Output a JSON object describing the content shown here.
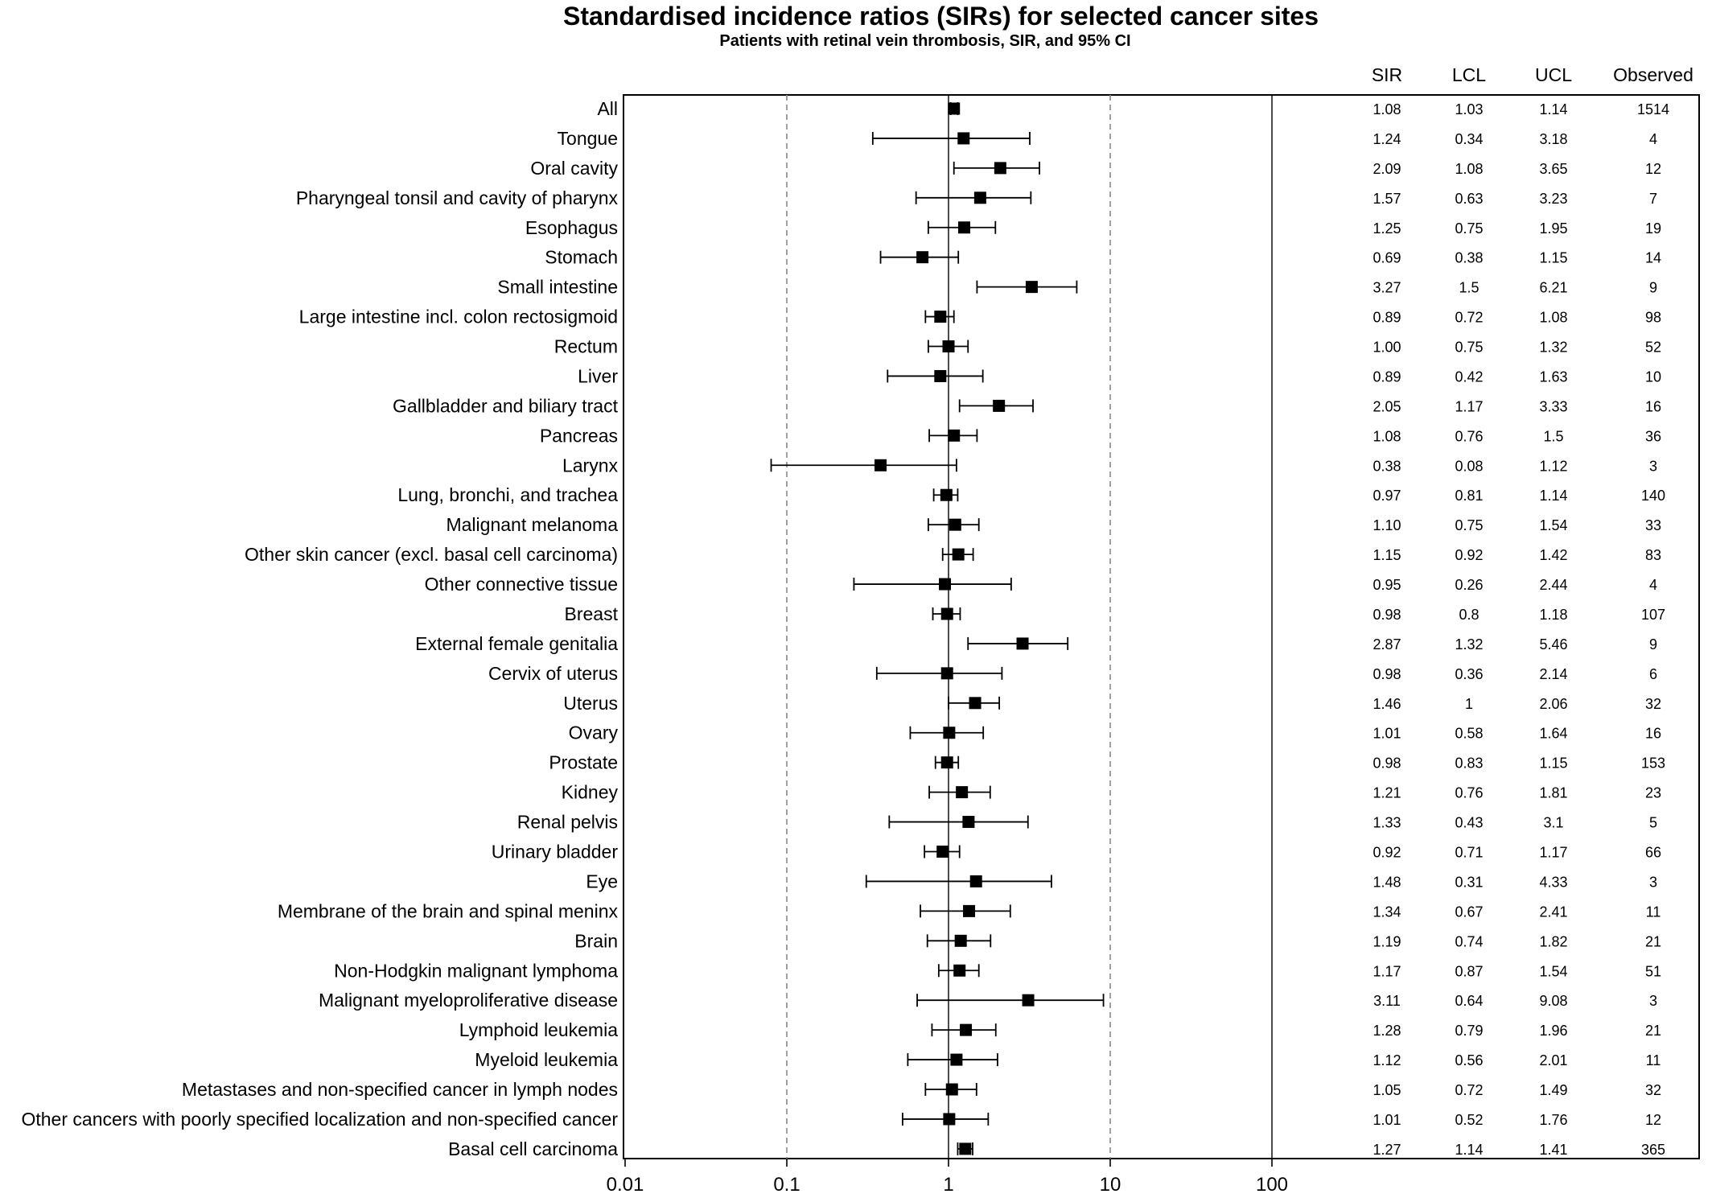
{
  "chart_data": {
    "type": "forest",
    "title": "Standardised incidence ratios (SIRs) for selected cancer sites",
    "subtitle": "Patients with retinal vein thrombosis, SIR, and 95% CI",
    "xscale": "log",
    "xlim": [
      0.01,
      100
    ],
    "xticks": [
      "0.01",
      "0.1",
      "1",
      "10",
      "100"
    ],
    "reference_line": 1,
    "dashed_lines": [
      0.1,
      10
    ],
    "columns": [
      "SIR",
      "LCL",
      "UCL",
      "Observed"
    ],
    "rows": [
      {
        "site": "All",
        "sir": "1.08",
        "lcl": "1.03",
        "ucl": "1.14",
        "observed": "1514"
      },
      {
        "site": "Tongue",
        "sir": "1.24",
        "lcl": "0.34",
        "ucl": "3.18",
        "observed": "4"
      },
      {
        "site": "Oral cavity",
        "sir": "2.09",
        "lcl": "1.08",
        "ucl": "3.65",
        "observed": "12"
      },
      {
        "site": "Pharyngeal tonsil and cavity of pharynx",
        "sir": "1.57",
        "lcl": "0.63",
        "ucl": "3.23",
        "observed": "7"
      },
      {
        "site": "Esophagus",
        "sir": "1.25",
        "lcl": "0.75",
        "ucl": "1.95",
        "observed": "19"
      },
      {
        "site": "Stomach",
        "sir": "0.69",
        "lcl": "0.38",
        "ucl": "1.15",
        "observed": "14"
      },
      {
        "site": "Small intestine",
        "sir": "3.27",
        "lcl": "1.5",
        "ucl": "6.21",
        "observed": "9"
      },
      {
        "site": "Large intestine incl. colon rectosigmoid",
        "sir": "0.89",
        "lcl": "0.72",
        "ucl": "1.08",
        "observed": "98"
      },
      {
        "site": "Rectum",
        "sir": "1.00",
        "lcl": "0.75",
        "ucl": "1.32",
        "observed": "52"
      },
      {
        "site": "Liver",
        "sir": "0.89",
        "lcl": "0.42",
        "ucl": "1.63",
        "observed": "10"
      },
      {
        "site": "Gallbladder and biliary tract",
        "sir": "2.05",
        "lcl": "1.17",
        "ucl": "3.33",
        "observed": "16"
      },
      {
        "site": "Pancreas",
        "sir": "1.08",
        "lcl": "0.76",
        "ucl": "1.5",
        "observed": "36"
      },
      {
        "site": "Larynx",
        "sir": "0.38",
        "lcl": "0.08",
        "ucl": "1.12",
        "observed": "3"
      },
      {
        "site": "Lung, bronchi, and trachea",
        "sir": "0.97",
        "lcl": "0.81",
        "ucl": "1.14",
        "observed": "140"
      },
      {
        "site": "Malignant melanoma",
        "sir": "1.10",
        "lcl": "0.75",
        "ucl": "1.54",
        "observed": "33"
      },
      {
        "site": "Other skin cancer (excl. basal cell carcinoma)",
        "sir": "1.15",
        "lcl": "0.92",
        "ucl": "1.42",
        "observed": "83"
      },
      {
        "site": "Other connective tissue",
        "sir": "0.95",
        "lcl": "0.26",
        "ucl": "2.44",
        "observed": "4"
      },
      {
        "site": "Breast",
        "sir": "0.98",
        "lcl": "0.8",
        "ucl": "1.18",
        "observed": "107"
      },
      {
        "site": "External female genitalia",
        "sir": "2.87",
        "lcl": "1.32",
        "ucl": "5.46",
        "observed": "9"
      },
      {
        "site": "Cervix of uterus",
        "sir": "0.98",
        "lcl": "0.36",
        "ucl": "2.14",
        "observed": "6"
      },
      {
        "site": "Uterus",
        "sir": "1.46",
        "lcl": "1",
        "ucl": "2.06",
        "observed": "32"
      },
      {
        "site": "Ovary",
        "sir": "1.01",
        "lcl": "0.58",
        "ucl": "1.64",
        "observed": "16"
      },
      {
        "site": "Prostate",
        "sir": "0.98",
        "lcl": "0.83",
        "ucl": "1.15",
        "observed": "153"
      },
      {
        "site": "Kidney",
        "sir": "1.21",
        "lcl": "0.76",
        "ucl": "1.81",
        "observed": "23"
      },
      {
        "site": "Renal pelvis",
        "sir": "1.33",
        "lcl": "0.43",
        "ucl": "3.1",
        "observed": "5"
      },
      {
        "site": "Urinary bladder",
        "sir": "0.92",
        "lcl": "0.71",
        "ucl": "1.17",
        "observed": "66"
      },
      {
        "site": "Eye",
        "sir": "1.48",
        "lcl": "0.31",
        "ucl": "4.33",
        "observed": "3"
      },
      {
        "site": "Membrane of the brain and spinal meninx",
        "sir": "1.34",
        "lcl": "0.67",
        "ucl": "2.41",
        "observed": "11"
      },
      {
        "site": "Brain",
        "sir": "1.19",
        "lcl": "0.74",
        "ucl": "1.82",
        "observed": "21"
      },
      {
        "site": "Non-Hodgkin malignant lymphoma",
        "sir": "1.17",
        "lcl": "0.87",
        "ucl": "1.54",
        "observed": "51"
      },
      {
        "site": "Malignant myeloproliferative disease",
        "sir": "3.11",
        "lcl": "0.64",
        "ucl": "9.08",
        "observed": "3"
      },
      {
        "site": "Lymphoid leukemia",
        "sir": "1.28",
        "lcl": "0.79",
        "ucl": "1.96",
        "observed": "21"
      },
      {
        "site": "Myeloid leukemia",
        "sir": "1.12",
        "lcl": "0.56",
        "ucl": "2.01",
        "observed": "11"
      },
      {
        "site": "Metastases and non-specified cancer in lymph nodes",
        "sir": "1.05",
        "lcl": "0.72",
        "ucl": "1.49",
        "observed": "32"
      },
      {
        "site": "Other cancers with poorly specified localization and non-specified cancer",
        "sir": "1.01",
        "lcl": "0.52",
        "ucl": "1.76",
        "observed": "12"
      },
      {
        "site": "Basal cell carcinoma",
        "sir": "1.27",
        "lcl": "1.14",
        "ucl": "1.41",
        "observed": "365"
      }
    ]
  }
}
